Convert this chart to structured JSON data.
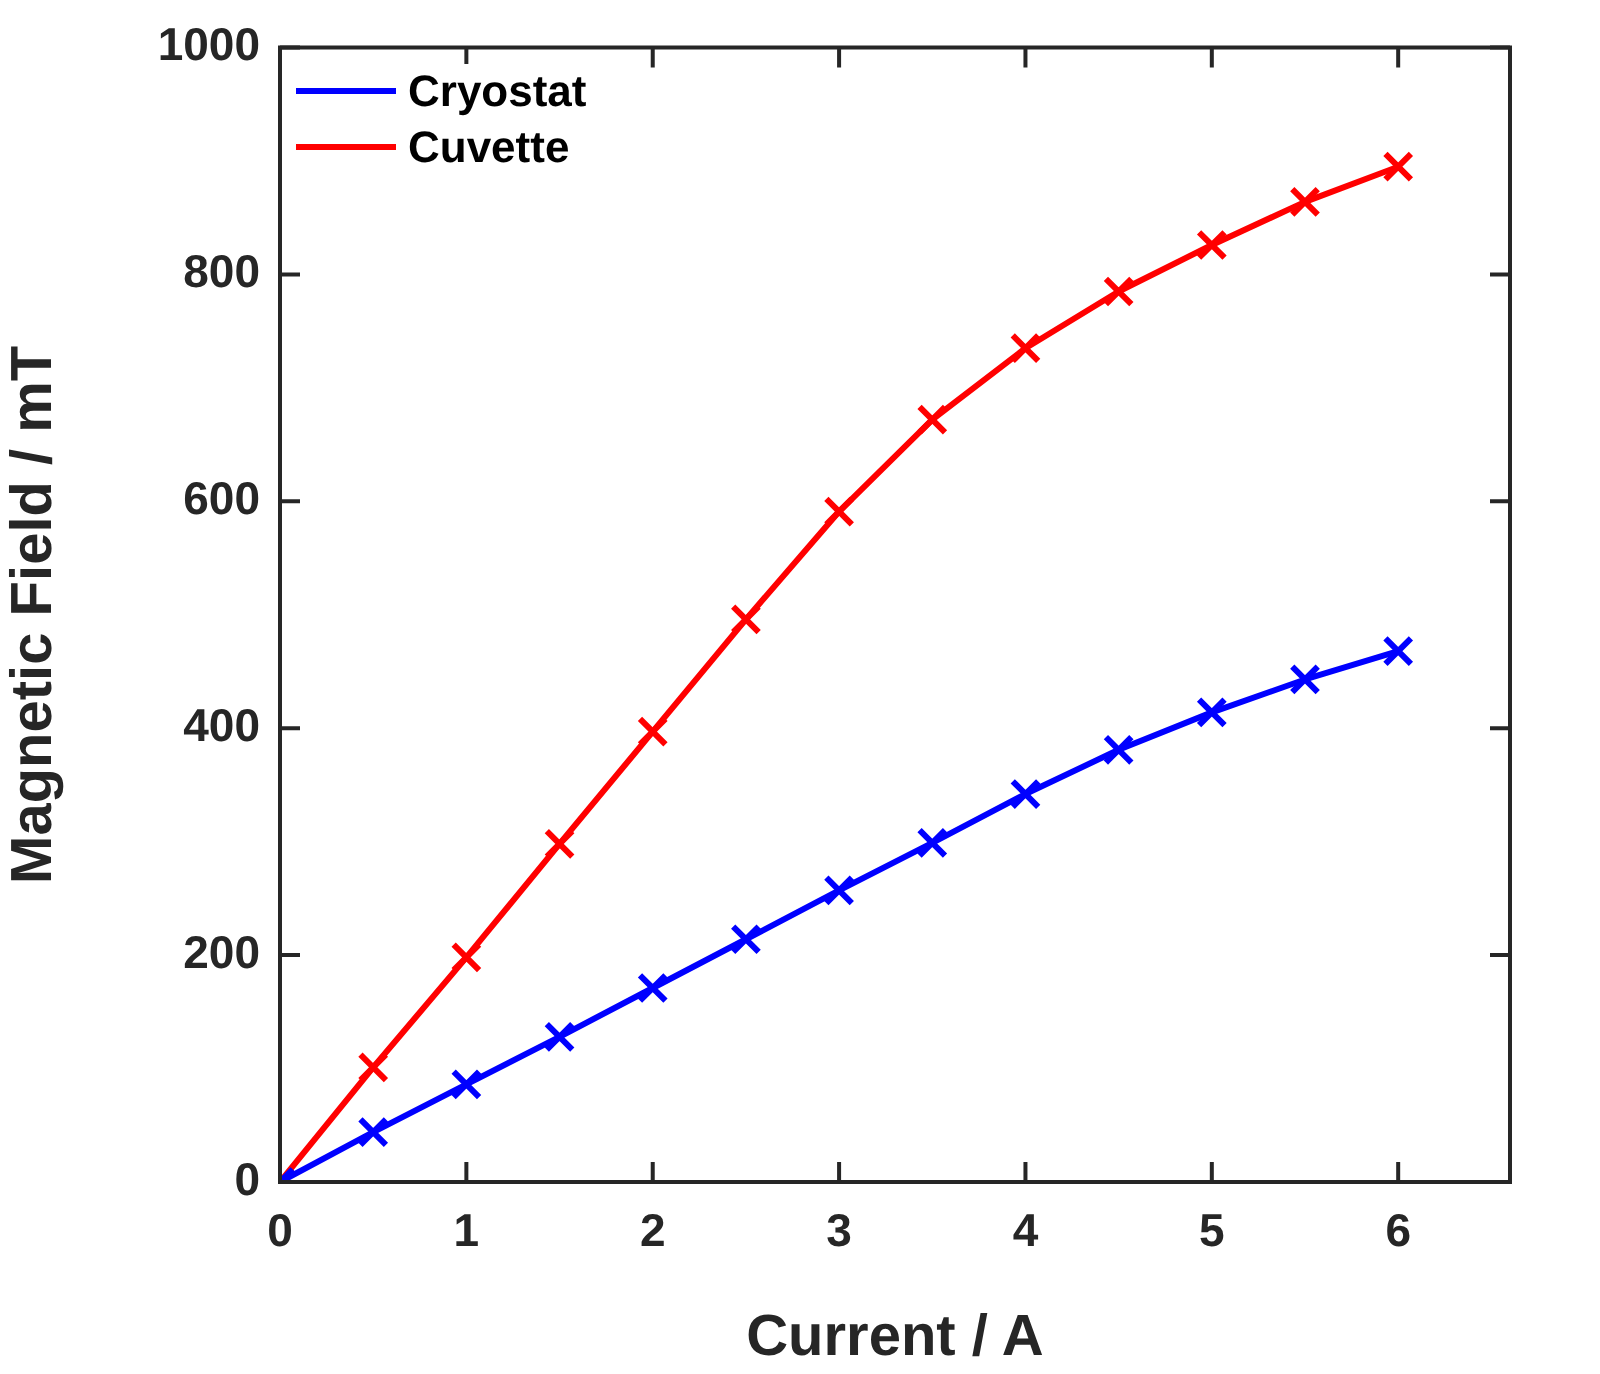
{
  "chart_data": {
    "type": "line",
    "xlabel": "Current / A",
    "ylabel": "Magnetic Field / mT",
    "x": [
      0,
      0.5,
      1,
      1.5,
      2,
      2.5,
      3,
      3.5,
      4,
      4.5,
      5,
      5.5,
      6
    ],
    "series": [
      {
        "name": "Cryostat",
        "color": "#0000ff",
        "values": [
          0,
          44,
          86,
          128,
          171,
          214,
          257,
          299,
          342,
          381,
          414,
          443,
          468
        ]
      },
      {
        "name": "Cuvette",
        "color": "#ff0000",
        "values": [
          0,
          101,
          198,
          298,
          397,
          496,
          591,
          672,
          735,
          785,
          826,
          864,
          895
        ]
      }
    ],
    "xlim": [
      0,
      6.6
    ],
    "xticks": [
      0,
      1,
      2,
      3,
      4,
      5,
      6
    ],
    "ylim": [
      0,
      1000
    ],
    "yticks": [
      0,
      200,
      400,
      600,
      800,
      1000
    ],
    "grid": false,
    "legend": "top left",
    "marker": "cross",
    "line_style": "solid"
  }
}
